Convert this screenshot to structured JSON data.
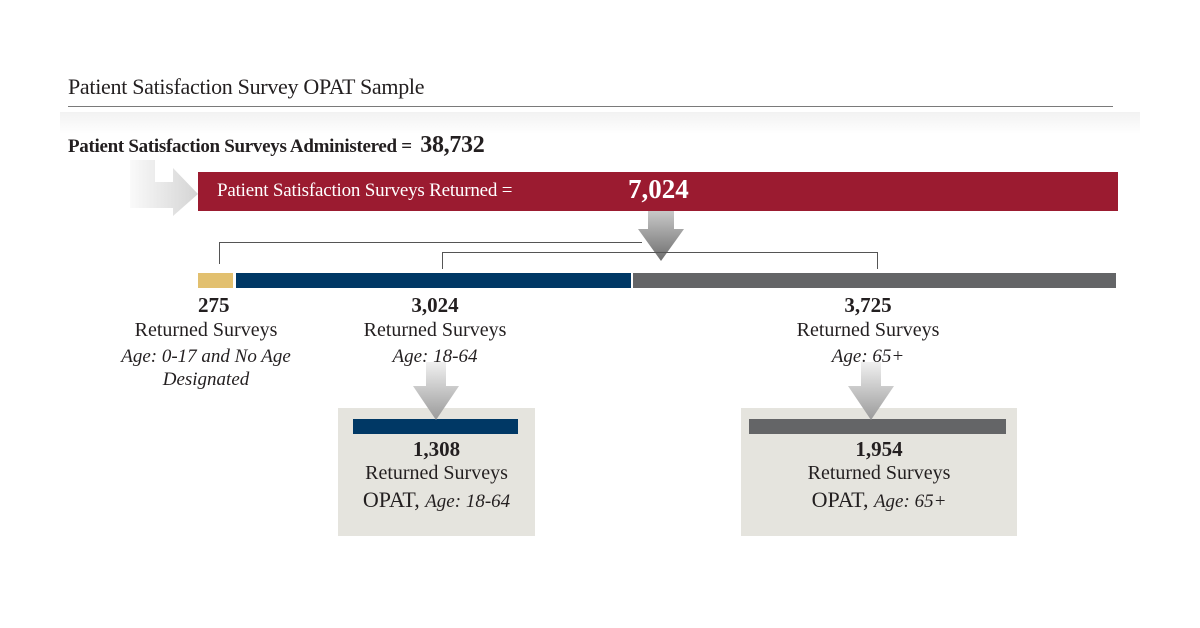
{
  "title": "Patient Satisfaction Survey OPAT Sample",
  "administered": {
    "label": "Patient Satisfaction Surveys Administered =",
    "value": "38,732"
  },
  "returned": {
    "label": "Patient Satisfaction Surveys Returned =",
    "value": "7,024"
  },
  "groups": [
    {
      "count": "275",
      "label": "Returned Surveys",
      "age": "Age: 0-17 and No Age",
      "age2": "Designated",
      "value": 275,
      "color": "#e2c06f"
    },
    {
      "count": "3,024",
      "label": "Returned Surveys",
      "age": "Age: 18-64",
      "value": 3024,
      "color": "#003865"
    },
    {
      "count": "3,725",
      "label": "Returned Surveys",
      "age": "Age: 65+",
      "value": 3725,
      "color": "#646567"
    }
  ],
  "opat": [
    {
      "count": "1,308",
      "label": "Returned Surveys",
      "prefix": "OPAT,",
      "age": "Age: 18-64"
    },
    {
      "count": "1,954",
      "label": "Returned Surveys",
      "prefix": "OPAT,",
      "age": "Age: 65+"
    }
  ],
  "colors": {
    "red": "#9b1b30",
    "gold": "#e2c06f",
    "navy": "#003865",
    "gray": "#646567",
    "box": "#e5e4de"
  }
}
